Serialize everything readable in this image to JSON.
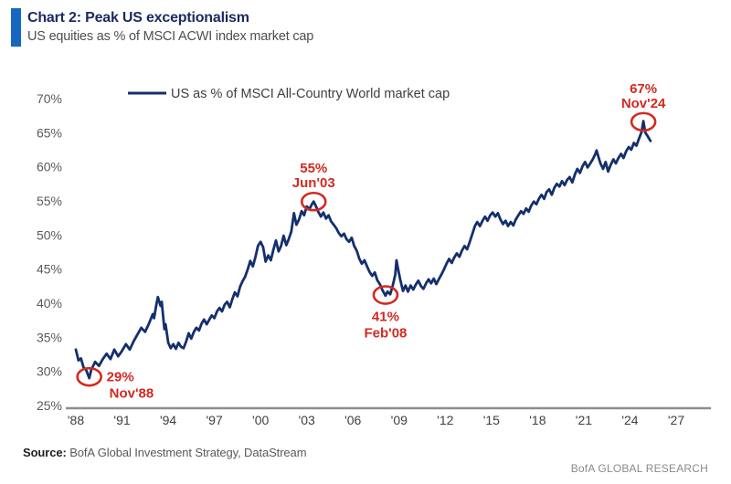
{
  "header": {
    "title": "Chart 2: Peak US exceptionalism",
    "subtitle": "US equities as % of MSCI ACWI index market cap"
  },
  "source": {
    "label": "Source:",
    "text": "BofA Global Investment Strategy, DataStream"
  },
  "brand": "BofA GLOBAL RESEARCH",
  "colors": {
    "line": "#142f6d",
    "accent_bar": "#1667c1",
    "annotation": "#d22a20",
    "axis_line": "#8c8c8c",
    "x_tick_label": "#404040",
    "y_tick_label": "#595959",
    "legend_text": "#3f3f3f"
  },
  "chart_data": {
    "type": "line",
    "title": "US as % of MSCI All-Country World market cap",
    "legend": [
      "US as % of MSCI All-Country World market cap"
    ],
    "legend_position": "top-left-inside",
    "grid": false,
    "xlim": [
      1988,
      2027
    ],
    "ylim": [
      25,
      70
    ],
    "y_ticks": [
      25,
      30,
      35,
      40,
      45,
      50,
      55,
      60,
      65,
      70
    ],
    "y_tick_suffix": "%",
    "x_ticks": [
      {
        "year": 1988,
        "label": "'88"
      },
      {
        "year": 1991,
        "label": "'91"
      },
      {
        "year": 1994,
        "label": "'94"
      },
      {
        "year": 1997,
        "label": "'97"
      },
      {
        "year": 2000,
        "label": "'00"
      },
      {
        "year": 2003,
        "label": "'03"
      },
      {
        "year": 2006,
        "label": "'06"
      },
      {
        "year": 2009,
        "label": "'09"
      },
      {
        "year": 2012,
        "label": "'12"
      },
      {
        "year": 2015,
        "label": "'15"
      },
      {
        "year": 2018,
        "label": "'18"
      },
      {
        "year": 2021,
        "label": "'21"
      },
      {
        "year": 2024,
        "label": "'24"
      },
      {
        "year": 2027,
        "label": "'27"
      }
    ],
    "annotations": [
      {
        "value_label": "29%",
        "date_label": "Nov'88",
        "year": 1988.87,
        "value": 29.2,
        "placement": "right"
      },
      {
        "value_label": "55%",
        "date_label": "Jun'03",
        "year": 2003.45,
        "value": 54.9,
        "placement": "above"
      },
      {
        "value_label": "41%",
        "date_label": "Feb'08",
        "year": 2008.12,
        "value": 41.2,
        "placement": "below"
      },
      {
        "value_label": "67%",
        "date_label": "Nov'24",
        "year": 2024.87,
        "value": 66.6,
        "placement": "above"
      }
    ],
    "series": [
      {
        "name": "US as % of MSCI All-Country World market cap",
        "points": [
          [
            1988.0,
            33.2
          ],
          [
            1988.17,
            31.6
          ],
          [
            1988.33,
            31.9
          ],
          [
            1988.5,
            30.6
          ],
          [
            1988.67,
            30.2
          ],
          [
            1988.87,
            29.0
          ],
          [
            1989.0,
            30.2
          ],
          [
            1989.25,
            31.4
          ],
          [
            1989.5,
            30.8
          ],
          [
            1989.75,
            31.8
          ],
          [
            1990.0,
            32.6
          ],
          [
            1990.25,
            31.8
          ],
          [
            1990.5,
            33.2
          ],
          [
            1990.75,
            32.2
          ],
          [
            1991.0,
            33.0
          ],
          [
            1991.25,
            34.0
          ],
          [
            1991.5,
            33.2
          ],
          [
            1991.75,
            34.4
          ],
          [
            1992.0,
            35.4
          ],
          [
            1992.25,
            36.4
          ],
          [
            1992.5,
            35.8
          ],
          [
            1992.75,
            37.0
          ],
          [
            1993.0,
            38.4
          ],
          [
            1993.08,
            37.8
          ],
          [
            1993.25,
            40.0
          ],
          [
            1993.33,
            40.9
          ],
          [
            1993.5,
            39.6
          ],
          [
            1993.58,
            40.2
          ],
          [
            1993.75,
            36.2
          ],
          [
            1993.83,
            36.9
          ],
          [
            1994.0,
            34.2
          ],
          [
            1994.17,
            33.4
          ],
          [
            1994.33,
            34.0
          ],
          [
            1994.5,
            33.3
          ],
          [
            1994.67,
            34.2
          ],
          [
            1994.83,
            33.6
          ],
          [
            1995.0,
            33.4
          ],
          [
            1995.17,
            34.4
          ],
          [
            1995.33,
            35.6
          ],
          [
            1995.5,
            34.8
          ],
          [
            1995.67,
            35.8
          ],
          [
            1995.83,
            36.4
          ],
          [
            1996.0,
            36.0
          ],
          [
            1996.17,
            37.0
          ],
          [
            1996.33,
            37.6
          ],
          [
            1996.5,
            36.9
          ],
          [
            1996.67,
            37.6
          ],
          [
            1996.83,
            38.2
          ],
          [
            1997.0,
            37.8
          ],
          [
            1997.17,
            38.8
          ],
          [
            1997.33,
            39.3
          ],
          [
            1997.5,
            38.8
          ],
          [
            1997.67,
            39.8
          ],
          [
            1997.83,
            40.2
          ],
          [
            1998.0,
            39.4
          ],
          [
            1998.17,
            40.6
          ],
          [
            1998.33,
            41.6
          ],
          [
            1998.5,
            41.0
          ],
          [
            1998.67,
            42.4
          ],
          [
            1998.83,
            43.2
          ],
          [
            1999.0,
            43.9
          ],
          [
            1999.17,
            45.0
          ],
          [
            1999.33,
            46.2
          ],
          [
            1999.5,
            45.4
          ],
          [
            1999.67,
            46.8
          ],
          [
            1999.83,
            48.4
          ],
          [
            2000.0,
            49.0
          ],
          [
            2000.17,
            48.2
          ],
          [
            2000.33,
            46.1
          ],
          [
            2000.5,
            47.0
          ],
          [
            2000.67,
            46.3
          ],
          [
            2000.83,
            47.8
          ],
          [
            2001.0,
            49.2
          ],
          [
            2001.17,
            47.6
          ],
          [
            2001.33,
            48.4
          ],
          [
            2001.5,
            49.9
          ],
          [
            2001.67,
            48.5
          ],
          [
            2001.83,
            49.4
          ],
          [
            2002.0,
            50.5
          ],
          [
            2002.17,
            53.2
          ],
          [
            2002.33,
            51.5
          ],
          [
            2002.5,
            52.3
          ],
          [
            2002.67,
            53.5
          ],
          [
            2002.83,
            52.9
          ],
          [
            2003.0,
            54.2
          ],
          [
            2003.17,
            53.8
          ],
          [
            2003.33,
            54.5
          ],
          [
            2003.45,
            54.9
          ],
          [
            2003.58,
            54.3
          ],
          [
            2003.75,
            53.4
          ],
          [
            2003.92,
            52.7
          ],
          [
            2004.08,
            53.3
          ],
          [
            2004.25,
            52.4
          ],
          [
            2004.42,
            52.9
          ],
          [
            2004.58,
            52.0
          ],
          [
            2004.75,
            51.5
          ],
          [
            2004.92,
            51.0
          ],
          [
            2005.08,
            50.3
          ],
          [
            2005.25,
            49.8
          ],
          [
            2005.42,
            50.2
          ],
          [
            2005.58,
            49.4
          ],
          [
            2005.75,
            49.0
          ],
          [
            2005.92,
            49.6
          ],
          [
            2006.08,
            48.4
          ],
          [
            2006.25,
            47.7
          ],
          [
            2006.42,
            46.5
          ],
          [
            2006.58,
            45.8
          ],
          [
            2006.75,
            46.3
          ],
          [
            2006.92,
            45.4
          ],
          [
            2007.08,
            44.6
          ],
          [
            2007.25,
            44.0
          ],
          [
            2007.42,
            44.5
          ],
          [
            2007.58,
            43.4
          ],
          [
            2007.75,
            42.8
          ],
          [
            2007.92,
            41.9
          ],
          [
            2008.12,
            41.1
          ],
          [
            2008.25,
            41.7
          ],
          [
            2008.42,
            41.3
          ],
          [
            2008.58,
            42.5
          ],
          [
            2008.75,
            44.2
          ],
          [
            2008.83,
            46.3
          ],
          [
            2008.92,
            45.2
          ],
          [
            2009.08,
            43.4
          ],
          [
            2009.25,
            41.8
          ],
          [
            2009.42,
            42.6
          ],
          [
            2009.58,
            41.7
          ],
          [
            2009.75,
            42.6
          ],
          [
            2009.92,
            42.0
          ],
          [
            2010.08,
            42.7
          ],
          [
            2010.25,
            43.3
          ],
          [
            2010.42,
            42.5
          ],
          [
            2010.58,
            42.1
          ],
          [
            2010.75,
            42.9
          ],
          [
            2010.92,
            43.5
          ],
          [
            2011.08,
            42.9
          ],
          [
            2011.25,
            43.6
          ],
          [
            2011.42,
            42.8
          ],
          [
            2011.58,
            43.5
          ],
          [
            2011.75,
            44.2
          ],
          [
            2011.92,
            45.0
          ],
          [
            2012.08,
            45.8
          ],
          [
            2012.25,
            46.5
          ],
          [
            2012.42,
            45.9
          ],
          [
            2012.58,
            46.7
          ],
          [
            2012.75,
            47.3
          ],
          [
            2012.92,
            46.8
          ],
          [
            2013.08,
            47.7
          ],
          [
            2013.25,
            48.4
          ],
          [
            2013.42,
            47.9
          ],
          [
            2013.58,
            48.9
          ],
          [
            2013.75,
            50.1
          ],
          [
            2013.92,
            51.3
          ],
          [
            2014.08,
            51.9
          ],
          [
            2014.25,
            51.3
          ],
          [
            2014.42,
            52.1
          ],
          [
            2014.58,
            52.7
          ],
          [
            2014.75,
            52.1
          ],
          [
            2014.92,
            52.9
          ],
          [
            2015.08,
            53.3
          ],
          [
            2015.25,
            52.7
          ],
          [
            2015.42,
            53.2
          ],
          [
            2015.58,
            52.3
          ],
          [
            2015.75,
            51.6
          ],
          [
            2015.92,
            52.1
          ],
          [
            2016.08,
            51.3
          ],
          [
            2016.25,
            51.9
          ],
          [
            2016.42,
            51.4
          ],
          [
            2016.58,
            52.3
          ],
          [
            2016.75,
            52.9
          ],
          [
            2016.92,
            53.5
          ],
          [
            2017.08,
            53.1
          ],
          [
            2017.25,
            53.9
          ],
          [
            2017.42,
            53.4
          ],
          [
            2017.58,
            54.3
          ],
          [
            2017.75,
            54.9
          ],
          [
            2017.92,
            54.5
          ],
          [
            2018.08,
            55.3
          ],
          [
            2018.25,
            55.9
          ],
          [
            2018.42,
            55.3
          ],
          [
            2018.58,
            56.3
          ],
          [
            2018.75,
            56.7
          ],
          [
            2018.92,
            55.9
          ],
          [
            2019.08,
            56.9
          ],
          [
            2019.25,
            57.5
          ],
          [
            2019.42,
            57.1
          ],
          [
            2019.58,
            57.9
          ],
          [
            2019.75,
            57.3
          ],
          [
            2019.92,
            58.1
          ],
          [
            2020.08,
            58.5
          ],
          [
            2020.25,
            57.7
          ],
          [
            2020.42,
            58.9
          ],
          [
            2020.58,
            59.7
          ],
          [
            2020.75,
            59.1
          ],
          [
            2020.92,
            60.1
          ],
          [
            2021.08,
            60.7
          ],
          [
            2021.25,
            59.9
          ],
          [
            2021.42,
            60.5
          ],
          [
            2021.58,
            61.1
          ],
          [
            2021.75,
            61.9
          ],
          [
            2021.83,
            62.4
          ],
          [
            2021.92,
            61.7
          ],
          [
            2022.08,
            60.5
          ],
          [
            2022.25,
            59.7
          ],
          [
            2022.42,
            60.7
          ],
          [
            2022.58,
            59.3
          ],
          [
            2022.75,
            60.3
          ],
          [
            2022.92,
            61.1
          ],
          [
            2023.08,
            60.5
          ],
          [
            2023.25,
            61.3
          ],
          [
            2023.42,
            61.9
          ],
          [
            2023.58,
            61.3
          ],
          [
            2023.75,
            62.3
          ],
          [
            2023.92,
            62.9
          ],
          [
            2024.08,
            62.5
          ],
          [
            2024.25,
            63.5
          ],
          [
            2024.42,
            63.1
          ],
          [
            2024.58,
            64.1
          ],
          [
            2024.75,
            65.1
          ],
          [
            2024.87,
            66.7
          ],
          [
            2025.0,
            65.0
          ],
          [
            2025.17,
            64.4
          ],
          [
            2025.33,
            63.8
          ]
        ]
      }
    ]
  }
}
